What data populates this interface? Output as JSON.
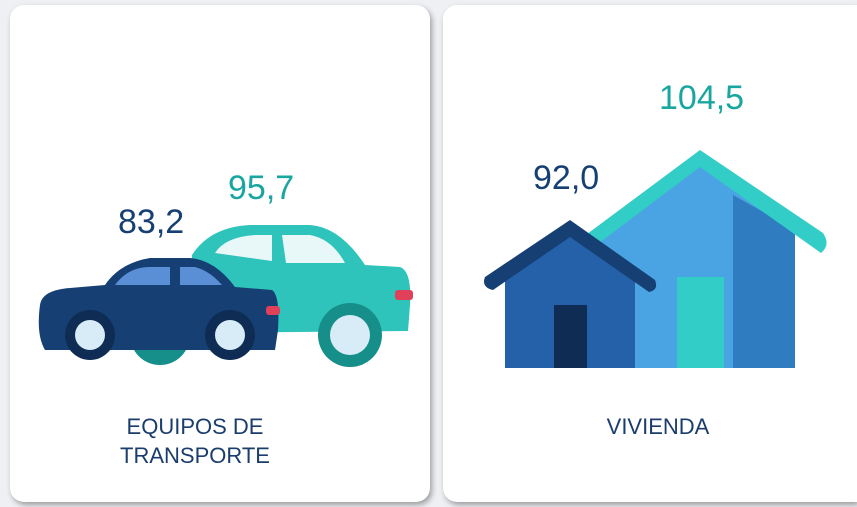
{
  "cards": [
    {
      "label": "EQUIPOS DE TRANSPORTE",
      "values": [
        "83,2",
        "95,7"
      ]
    },
    {
      "label": "VIVIENDA",
      "values": [
        "92,0",
        "104,5"
      ]
    }
  ]
}
